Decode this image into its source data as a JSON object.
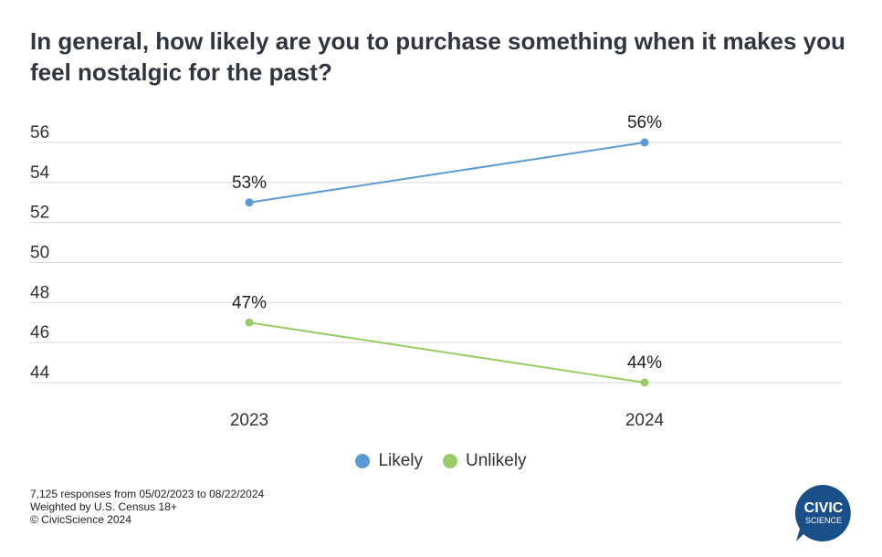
{
  "title": "In general, how likely are you to purchase something when it makes you feel nostalgic for the past?",
  "chart_data": {
    "type": "line",
    "x": [
      "2023",
      "2024"
    ],
    "y_ticks": [
      44,
      46,
      48,
      50,
      52,
      54,
      56
    ],
    "ylim": [
      44,
      56
    ],
    "grid": true,
    "legend_position": "bottom",
    "series": [
      {
        "name": "Likely",
        "values": [
          53,
          56
        ],
        "labels": [
          "53%",
          "56%"
        ],
        "color": "#5b9bd5"
      },
      {
        "name": "Unlikely",
        "values": [
          47,
          44
        ],
        "labels": [
          "47%",
          "44%"
        ],
        "color": "#99cc66"
      }
    ]
  },
  "legend": [
    {
      "label": "Likely",
      "color": "#5b9bd5"
    },
    {
      "label": "Unlikely",
      "color": "#99cc66"
    }
  ],
  "footnotes": {
    "line1": "7,125 responses from 05/02/2023 to 08/22/2024",
    "line2": "Weighted by U.S. Census 18+",
    "line3": "© CivicScience 2024"
  },
  "logo": {
    "line1": "CIVIC",
    "line2": "SCIENCE",
    "color": "#1b4f8a"
  }
}
